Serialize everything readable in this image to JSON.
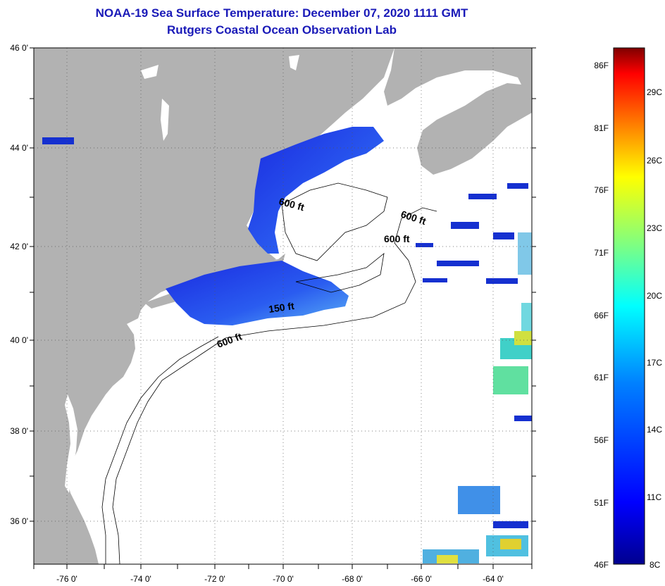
{
  "title": {
    "line1": "NOAA-19 Sea Surface Temperature:  December 07, 2020 1111 GMT",
    "line2": "Rutgers Coastal Ocean Observation Lab"
  },
  "map": {
    "lat_labels": [
      "46 0'",
      "44 0'",
      "42 0'",
      "40 0'",
      "38 0'",
      "36 0'"
    ],
    "lon_labels": [
      "-76 0'",
      "-74 0'",
      "-72 0'",
      "-70 0'",
      "-68 0'",
      "-66 0'",
      "-64 0'"
    ],
    "contour_labels": [
      "600 ft",
      "600 ft",
      "600 ft",
      "150 ft",
      "600 ft"
    ],
    "colors": {
      "land": "#b2b2b2",
      "ocean_nodata": "#ffffff",
      "gridline": "#555555"
    }
  },
  "colorbar": {
    "fahrenheit_labels": [
      "86F",
      "81F",
      "76F",
      "71F",
      "66F",
      "61F",
      "56F",
      "51F",
      "46F"
    ],
    "celsius_labels": [
      "29C",
      "26C",
      "23C",
      "20C",
      "17C",
      "14C",
      "11C",
      "8C"
    ],
    "scale_colors": [
      "#7f0000",
      "#ff0000",
      "#ff8000",
      "#ffff00",
      "#80ff80",
      "#00ffff",
      "#0080ff",
      "#0000ff",
      "#00008f"
    ]
  }
}
